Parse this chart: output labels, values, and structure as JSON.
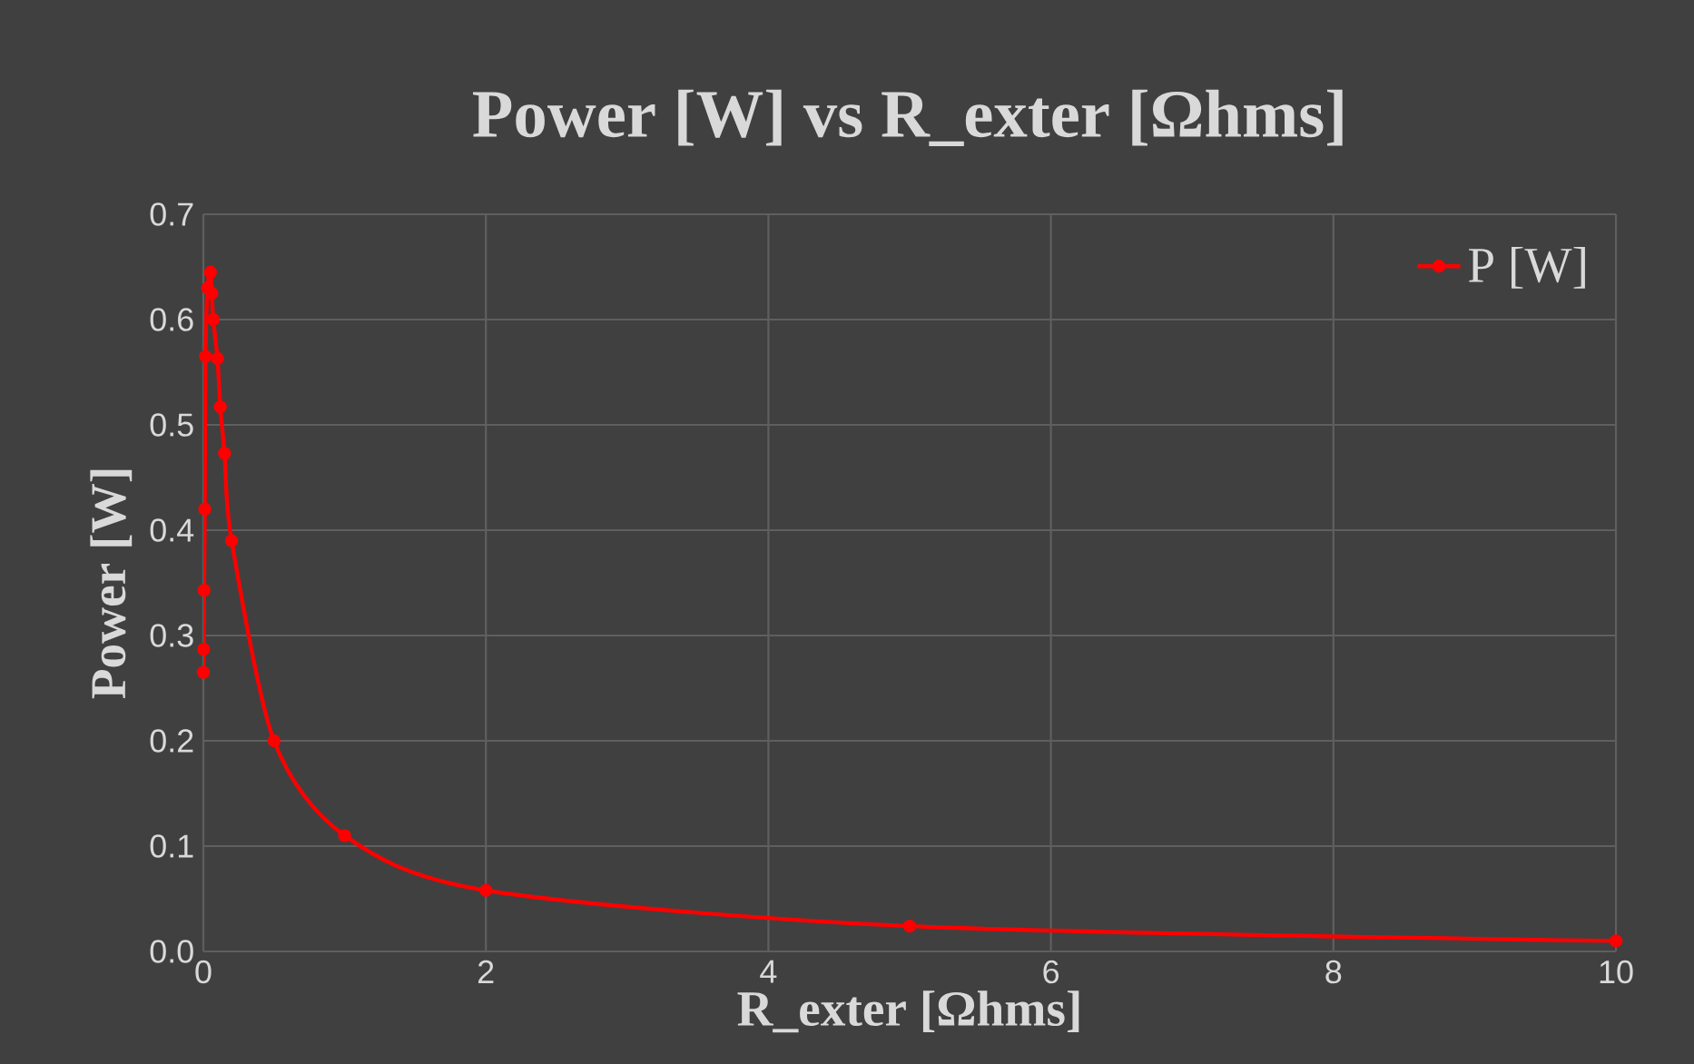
{
  "chart_data": {
    "type": "line",
    "title": "Power [W] vs R_exter [Ωhms]",
    "xlabel": "R_exter [Ωhms]",
    "ylabel": "Power [W]",
    "x": [
      0,
      0.002,
      0.005,
      0.01,
      0.015,
      0.03,
      0.05,
      0.06,
      0.07,
      0.1,
      0.12,
      0.15,
      0.2,
      0.5,
      1,
      2,
      5,
      10
    ],
    "series": [
      {
        "name": "P [W]",
        "color": "#ff0000",
        "values": [
          0.265,
          0.287,
          0.343,
          0.42,
          0.565,
          0.63,
          0.645,
          0.625,
          0.6,
          0.563,
          0.517,
          0.473,
          0.39,
          0.2,
          0.11,
          0.058,
          0.024,
          0.01
        ]
      }
    ],
    "xlim": [
      0,
      10
    ],
    "xticks": [
      0,
      2,
      4,
      6,
      8,
      10
    ],
    "ylim": [
      0,
      0.7
    ],
    "yticks": [
      {
        "value": 0,
        "label": "0.0"
      },
      0.1,
      0.2,
      0.3,
      0.4,
      0.5,
      0.6,
      0.7
    ],
    "grid": true,
    "legend": "top right",
    "marker": "circle",
    "line_style": "solid"
  }
}
